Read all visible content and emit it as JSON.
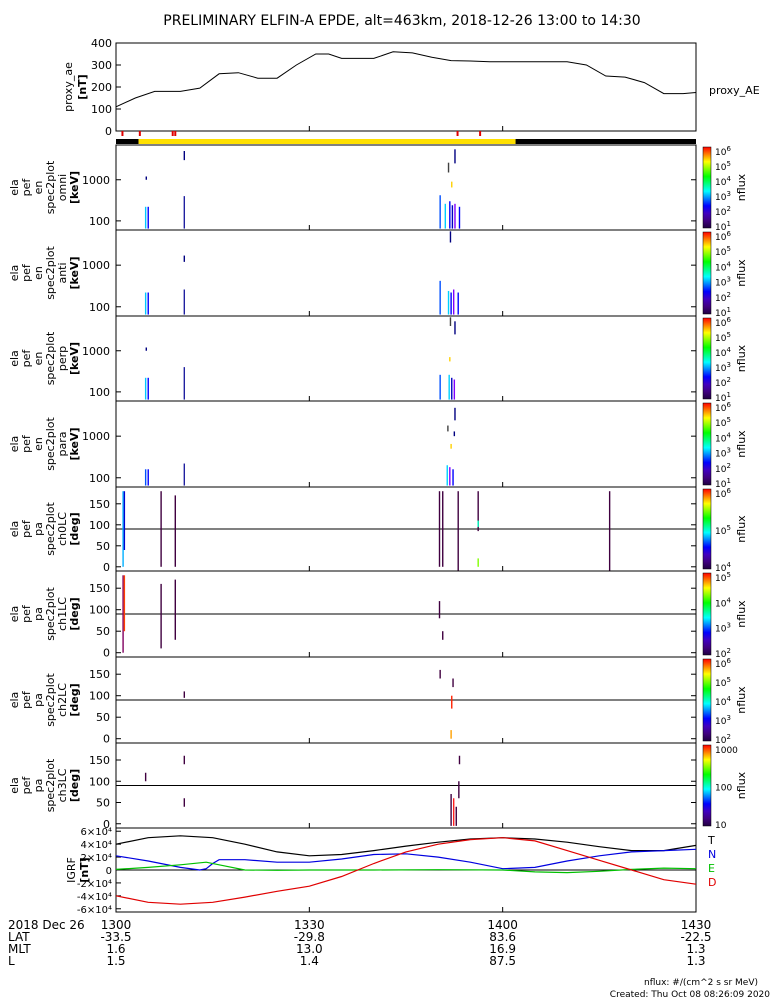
{
  "title": "PRELIMINARY ELFIN-A EPDE, alt=463km, 2018-12-26 13:00 to 14:30",
  "footer": {
    "units": "nflux: #/(cm^2 s sr MeV)",
    "created": "Created: Thu Oct 08 08:26:09 2020"
  },
  "colors": {
    "axis": "#000000",
    "science_bar": "#ffe000",
    "marker": "#e00000",
    "igrf_t": "#000000",
    "igrf_n": "#0000e0",
    "igrf_e": "#00c000",
    "igrf_d": "#e00000"
  },
  "ephemeris": {
    "date_label": "2018 Dec 26",
    "rows": [
      {
        "label": "LAT",
        "values": [
          "-33.5",
          "-29.8",
          "83.6",
          "-22.5"
        ]
      },
      {
        "label": "MLT",
        "values": [
          "1.6",
          "13.0",
          "16.9",
          "1.3"
        ]
      },
      {
        "label": "L",
        "values": [
          "1.5",
          "1.4",
          "87.5",
          "1.3"
        ]
      }
    ]
  },
  "chart_data": [
    {
      "id": "proxy_ae",
      "type": "line",
      "ylabel": [
        "proxy_ae",
        "[nT]"
      ],
      "series_label": "proxy_AE",
      "xlabel": "",
      "x_ticks": [
        "1300",
        "1330",
        "1400",
        "1430"
      ],
      "x_range_min": [
        0,
        90
      ],
      "ylim": [
        0,
        400
      ],
      "y_ticks": [
        "0",
        "100",
        "200",
        "300",
        "400"
      ],
      "x": [
        0,
        3,
        6,
        10,
        13,
        16,
        19,
        22,
        25,
        28,
        31,
        33,
        35,
        37,
        40,
        43,
        46,
        49,
        52,
        55,
        58,
        61,
        64,
        67,
        70,
        73,
        76,
        79,
        82,
        85,
        88,
        90
      ],
      "values": [
        110,
        150,
        180,
        180,
        195,
        260,
        265,
        240,
        240,
        300,
        350,
        350,
        330,
        330,
        330,
        360,
        355,
        335,
        320,
        318,
        315,
        315,
        315,
        315,
        315,
        300,
        250,
        245,
        220,
        170,
        170,
        175
      ]
    },
    {
      "id": "science_zone_bar",
      "type": "bar",
      "segments": [
        {
          "start_min": 0,
          "end_min": 3.5,
          "state": "off"
        },
        {
          "start_min": 3.5,
          "end_min": 62,
          "state": "science"
        },
        {
          "start_min": 62,
          "end_min": 90,
          "state": "off"
        }
      ],
      "markers_min": [
        1.0,
        3.7,
        8.8,
        9.2,
        53.0,
        56.5
      ]
    },
    {
      "id": "spec_en_omni",
      "type": "heatmap",
      "ylabel": [
        "ela",
        "pef",
        "en",
        "spec2plot",
        "omni",
        "[keV]"
      ],
      "ytype": "log",
      "ylim": [
        60,
        7000
      ],
      "y_ticks": [
        100,
        1000
      ],
      "colorbar": {
        "label": "nflux",
        "ticks": [
          "10^1",
          "10^2",
          "10^3",
          "10^4",
          "10^5",
          "10^6"
        ]
      },
      "bursts": [
        {
          "t": 4.6,
          "y0": 65,
          "y1": 220,
          "color": "#00c8ff"
        },
        {
          "t": 5.0,
          "y0": 65,
          "y1": 220,
          "color": "#0000ff"
        },
        {
          "t": 4.7,
          "y0": 1000,
          "y1": 1200,
          "color": "#000080"
        },
        {
          "t": 10.6,
          "y0": 65,
          "y1": 400,
          "color": "#2020a0"
        },
        {
          "t": 10.6,
          "y0": 3000,
          "y1": 5000,
          "color": "#000080"
        },
        {
          "t": 50.3,
          "y0": 65,
          "y1": 420,
          "color": "#0050ff"
        },
        {
          "t": 51.1,
          "y0": 65,
          "y1": 260,
          "color": "#00d0ff"
        },
        {
          "t": 51.8,
          "y0": 65,
          "y1": 300,
          "color": "#0000ff"
        },
        {
          "t": 52.2,
          "y0": 65,
          "y1": 240,
          "color": "#0000c0"
        },
        {
          "t": 52.6,
          "y0": 65,
          "y1": 260,
          "color": "#8000ff"
        },
        {
          "t": 53.3,
          "y0": 65,
          "y1": 220,
          "color": "#0000ff"
        },
        {
          "t": 51.6,
          "y0": 1500,
          "y1": 2600,
          "color": "#404040"
        },
        {
          "t": 52.1,
          "y0": 650,
          "y1": 900,
          "color": "#ffd000"
        },
        {
          "t": 52.6,
          "y0": 2500,
          "y1": 5500,
          "color": "#000080"
        }
      ]
    },
    {
      "id": "spec_en_anti",
      "type": "heatmap",
      "ylabel": [
        "ela",
        "pef",
        "en",
        "spec2plot",
        "anti",
        "[keV]"
      ],
      "ytype": "log",
      "ylim": [
        60,
        7000
      ],
      "y_ticks": [
        100,
        1000
      ],
      "colorbar": {
        "label": "nflux",
        "ticks": [
          "10^1",
          "10^2",
          "10^3",
          "10^4",
          "10^5",
          "10^6"
        ]
      },
      "bursts": [
        {
          "t": 4.6,
          "y0": 65,
          "y1": 220,
          "color": "#00c8ff"
        },
        {
          "t": 5.0,
          "y0": 65,
          "y1": 220,
          "color": "#0000ff"
        },
        {
          "t": 10.6,
          "y0": 65,
          "y1": 260,
          "color": "#2020a0"
        },
        {
          "t": 10.6,
          "y0": 1200,
          "y1": 1700,
          "color": "#000080"
        },
        {
          "t": 50.3,
          "y0": 65,
          "y1": 420,
          "color": "#0050ff"
        },
        {
          "t": 51.6,
          "y0": 65,
          "y1": 240,
          "color": "#00d0ff"
        },
        {
          "t": 52.0,
          "y0": 65,
          "y1": 220,
          "color": "#0000ff"
        },
        {
          "t": 52.4,
          "y0": 65,
          "y1": 260,
          "color": "#8000ff"
        },
        {
          "t": 53.1,
          "y0": 65,
          "y1": 220,
          "color": "#0000ff"
        },
        {
          "t": 51.9,
          "y0": 3500,
          "y1": 6500,
          "color": "#000080"
        }
      ]
    },
    {
      "id": "spec_en_perp",
      "type": "heatmap",
      "ylabel": [
        "ela",
        "pef",
        "en",
        "spec2plot",
        "perp",
        "[keV]"
      ],
      "ytype": "log",
      "ylim": [
        60,
        7000
      ],
      "y_ticks": [
        100,
        1000
      ],
      "colorbar": {
        "label": "nflux",
        "ticks": [
          "10^1",
          "10^2",
          "10^3",
          "10^4",
          "10^5",
          "10^6"
        ]
      },
      "bursts": [
        {
          "t": 4.6,
          "y0": 65,
          "y1": 220,
          "color": "#00c8ff"
        },
        {
          "t": 5.0,
          "y0": 65,
          "y1": 220,
          "color": "#0000ff"
        },
        {
          "t": 4.7,
          "y0": 1000,
          "y1": 1200,
          "color": "#000080"
        },
        {
          "t": 10.6,
          "y0": 65,
          "y1": 400,
          "color": "#2020a0"
        },
        {
          "t": 50.3,
          "y0": 65,
          "y1": 260,
          "color": "#0050ff"
        },
        {
          "t": 51.7,
          "y0": 65,
          "y1": 260,
          "color": "#00d0ff"
        },
        {
          "t": 52.1,
          "y0": 65,
          "y1": 220,
          "color": "#0000c0"
        },
        {
          "t": 52.5,
          "y0": 65,
          "y1": 200,
          "color": "#8000ff"
        },
        {
          "t": 51.8,
          "y0": 550,
          "y1": 700,
          "color": "#ffd000"
        },
        {
          "t": 52.6,
          "y0": 2500,
          "y1": 5200,
          "color": "#000080"
        },
        {
          "t": 51.9,
          "y0": 4000,
          "y1": 6500,
          "color": "#404040"
        }
      ]
    },
    {
      "id": "spec_en_para",
      "type": "heatmap",
      "ylabel": [
        "ela",
        "pef",
        "en",
        "spec2plot",
        "para",
        "[keV]"
      ],
      "ytype": "log",
      "ylim": [
        60,
        7000
      ],
      "y_ticks": [
        100,
        1000
      ],
      "colorbar": {
        "label": "nflux",
        "ticks": [
          "10^1",
          "10^2",
          "10^3",
          "10^4",
          "10^5",
          "10^6"
        ]
      },
      "bursts": [
        {
          "t": 4.6,
          "y0": 65,
          "y1": 160,
          "color": "#0050ff"
        },
        {
          "t": 5.0,
          "y0": 65,
          "y1": 160,
          "color": "#0000ff"
        },
        {
          "t": 10.6,
          "y0": 65,
          "y1": 220,
          "color": "#2020a0"
        },
        {
          "t": 51.4,
          "y0": 65,
          "y1": 200,
          "color": "#00d0ff"
        },
        {
          "t": 51.8,
          "y0": 65,
          "y1": 180,
          "color": "#8000ff"
        },
        {
          "t": 52.3,
          "y0": 65,
          "y1": 160,
          "color": "#0000ff"
        },
        {
          "t": 51.5,
          "y0": 1300,
          "y1": 1800,
          "color": "#404040"
        },
        {
          "t": 52.0,
          "y0": 500,
          "y1": 650,
          "color": "#ffd000"
        },
        {
          "t": 52.6,
          "y0": 2400,
          "y1": 4800,
          "color": "#000080"
        },
        {
          "t": 52.5,
          "y0": 1000,
          "y1": 1300,
          "color": "#000080"
        }
      ]
    },
    {
      "id": "spec_pa_ch0LC",
      "type": "heatmap",
      "ylabel": [
        "ela",
        "pef",
        "pa",
        "spec2plot",
        "ch0LC",
        "[deg]"
      ],
      "ytype": "linear",
      "ylim": [
        -10,
        190
      ],
      "y_ticks": [
        0,
        50,
        100,
        150
      ],
      "ref_line": 90,
      "colorbar": {
        "label": "nflux",
        "ticks": [
          "10^4",
          "10^5",
          "10^6"
        ]
      },
      "bursts": [
        {
          "t": 1.1,
          "y0": 0,
          "y1": 180,
          "color": "#00b0ff"
        },
        {
          "t": 1.3,
          "y0": 40,
          "y1": 180,
          "color": "#0000d0"
        },
        {
          "t": 7.0,
          "y0": 0,
          "y1": 180,
          "color": "#400040"
        },
        {
          "t": 9.2,
          "y0": 0,
          "y1": 170,
          "color": "#400040"
        },
        {
          "t": 50.2,
          "y0": 0,
          "y1": 180,
          "color": "#400040"
        },
        {
          "t": 50.7,
          "y0": 0,
          "y1": 180,
          "color": "#400040"
        },
        {
          "t": 53.1,
          "y0": -10,
          "y1": 180,
          "color": "#400040"
        },
        {
          "t": 56.2,
          "y0": 85,
          "y1": 180,
          "color": "#400040"
        },
        {
          "t": 56.2,
          "y0": 95,
          "y1": 110,
          "color": "#00ffc0"
        },
        {
          "t": 56.2,
          "y0": 0,
          "y1": 20,
          "color": "#80ff00"
        },
        {
          "t": 76.6,
          "y0": -10,
          "y1": 180,
          "color": "#400040"
        }
      ]
    },
    {
      "id": "spec_pa_ch1LC",
      "type": "heatmap",
      "ylabel": [
        "ela",
        "pef",
        "pa",
        "spec2plot",
        "ch1LC",
        "[deg]"
      ],
      "ytype": "linear",
      "ylim": [
        -10,
        190
      ],
      "y_ticks": [
        0,
        50,
        100,
        150
      ],
      "ref_line": 90,
      "colorbar": {
        "label": "nflux",
        "ticks": [
          "10^2",
          "10^3",
          "10^4",
          "10^5"
        ]
      },
      "bursts": [
        {
          "t": 1.1,
          "y0": 0,
          "y1": 180,
          "color": "#800060"
        },
        {
          "t": 1.3,
          "y0": 50,
          "y1": 180,
          "color": "#ff4000"
        },
        {
          "t": 7.0,
          "y0": 10,
          "y1": 160,
          "color": "#400040"
        },
        {
          "t": 9.2,
          "y0": 30,
          "y1": 170,
          "color": "#400040"
        },
        {
          "t": 50.2,
          "y0": 80,
          "y1": 120,
          "color": "#400040"
        },
        {
          "t": 50.7,
          "y0": 30,
          "y1": 50,
          "color": "#400040"
        }
      ]
    },
    {
      "id": "spec_pa_ch2LC",
      "type": "heatmap",
      "ylabel": [
        "ela",
        "pef",
        "pa",
        "spec2plot",
        "ch2LC",
        "[deg]"
      ],
      "ytype": "linear",
      "ylim": [
        -10,
        190
      ],
      "y_ticks": [
        0,
        50,
        100,
        150
      ],
      "ref_line": 90,
      "colorbar": {
        "label": "nflux",
        "ticks": [
          "10^2",
          "10^3",
          "10^4",
          "10^5",
          "10^6"
        ]
      },
      "bursts": [
        {
          "t": 10.6,
          "y0": 95,
          "y1": 110,
          "color": "#400040"
        },
        {
          "t": 50.3,
          "y0": 140,
          "y1": 160,
          "color": "#400040"
        },
        {
          "t": 52.3,
          "y0": 120,
          "y1": 140,
          "color": "#400040"
        },
        {
          "t": 52.1,
          "y0": 70,
          "y1": 100,
          "color": "#ff2000"
        },
        {
          "t": 52.0,
          "y0": 0,
          "y1": 20,
          "color": "#ffa000"
        }
      ]
    },
    {
      "id": "spec_pa_ch3LC",
      "type": "heatmap",
      "ylabel": [
        "ela",
        "pef",
        "pa",
        "spec2plot",
        "ch3LC",
        "[deg]"
      ],
      "ytype": "linear",
      "ylim": [
        -10,
        190
      ],
      "y_ticks": [
        0,
        50,
        100,
        150
      ],
      "ref_line": 90,
      "colorbar": {
        "label": "nflux",
        "ticks": [
          "10",
          "100",
          "1000"
        ]
      },
      "bursts": [
        {
          "t": 4.6,
          "y0": 100,
          "y1": 120,
          "color": "#400040"
        },
        {
          "t": 10.6,
          "y0": 140,
          "y1": 160,
          "color": "#400040"
        },
        {
          "t": 10.6,
          "y0": 40,
          "y1": 60,
          "color": "#400040"
        },
        {
          "t": 52.0,
          "y0": -5,
          "y1": 70,
          "color": "#400040"
        },
        {
          "t": 52.4,
          "y0": -5,
          "y1": 60,
          "color": "#ff2020"
        },
        {
          "t": 52.8,
          "y0": -5,
          "y1": 40,
          "color": "#400040"
        },
        {
          "t": 53.2,
          "y0": 60,
          "y1": 100,
          "color": "#400040"
        },
        {
          "t": 53.3,
          "y0": 140,
          "y1": 160,
          "color": "#400040"
        }
      ]
    },
    {
      "id": "igrf",
      "type": "line",
      "ylabel": [
        "IGRF",
        "[nT]"
      ],
      "ylim": [
        -65000,
        65000
      ],
      "y_ticks": [
        -60000,
        -40000,
        -20000,
        0,
        20000,
        40000,
        60000
      ],
      "y_tick_labels": [
        "-6×10⁴",
        "-4×10⁴",
        "-2×10⁴",
        "0",
        "2×10⁴",
        "4×10⁴",
        "6×10⁴"
      ],
      "ref_line": 0,
      "series": [
        {
          "name": "T",
          "color": "#000000",
          "x": [
            0,
            5,
            10,
            15,
            20,
            25,
            30,
            35,
            40,
            45,
            50,
            55,
            60,
            65,
            70,
            75,
            80,
            85,
            90
          ],
          "values": [
            40000,
            50000,
            53000,
            50000,
            40000,
            28000,
            22000,
            24000,
            30000,
            37000,
            43000,
            48000,
            50000,
            48000,
            43000,
            36000,
            30000,
            30000,
            38000
          ]
        },
        {
          "name": "N",
          "color": "#0000e0",
          "x": [
            0,
            5,
            10,
            13,
            14,
            15,
            16,
            20,
            25,
            30,
            35,
            40,
            45,
            50,
            55,
            60,
            65,
            70,
            75,
            80,
            85,
            90
          ],
          "values": [
            22000,
            14000,
            4000,
            0,
            2000,
            10000,
            16000,
            16000,
            12000,
            12000,
            17000,
            24000,
            25000,
            20000,
            12000,
            2000,
            4000,
            14000,
            22000,
            28000,
            30000,
            32000
          ]
        },
        {
          "name": "E",
          "color": "#00c000",
          "x": [
            0,
            5,
            10,
            14,
            16,
            20,
            25,
            30,
            40,
            50,
            60,
            65,
            70,
            75,
            80,
            85,
            90
          ],
          "values": [
            1000,
            4000,
            8000,
            12000,
            8000,
            0,
            -500,
            0,
            0,
            500,
            0,
            -3000,
            -4000,
            -2000,
            1000,
            3000,
            2000
          ]
        },
        {
          "name": "D",
          "color": "#e00000",
          "x": [
            0,
            5,
            10,
            15,
            20,
            25,
            30,
            35,
            40,
            45,
            50,
            55,
            60,
            65,
            70,
            75,
            80,
            85,
            90
          ],
          "values": [
            -40000,
            -50000,
            -53000,
            -50000,
            -42000,
            -33000,
            -25000,
            -10000,
            10000,
            28000,
            40000,
            47000,
            50000,
            45000,
            30000,
            15000,
            0,
            -15000,
            -22000
          ]
        }
      ]
    }
  ]
}
